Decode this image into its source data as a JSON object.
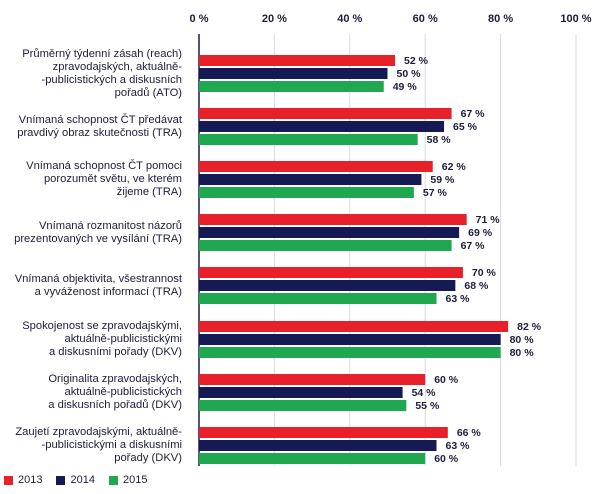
{
  "chart_data": {
    "type": "bar",
    "orientation": "horizontal",
    "xlim": [
      0,
      100
    ],
    "ticks": [
      "0 %",
      "20 %",
      "40 %",
      "60 %",
      "80 %",
      "100 %"
    ],
    "tick_values": [
      0,
      20,
      40,
      60,
      80,
      100
    ],
    "grid": true,
    "legend_position": "bottom-left",
    "categories": [
      "Průměrný týdenní zásah (reach) zpravodajských, aktuálně--publicistických a diskusních pořadů (ATO)",
      "Vnímaná schopnost ČT předávat pravdivý obraz skutečnosti (TRA)",
      "Vnímaná schopnost ČT pomoci porozumět světu, ve kterém žijeme (TRA)",
      "Vnímaná rozmanitost názorů prezentovaných ve vysílání (TRA)",
      "Vnímaná objektivita, všestrannost a vyváženost informací (TRA)",
      "Spokojenost se zpravodajskými, aktuálně-publicistickými a diskusními pořady (DKV)",
      "Originalita zpravodajských, aktuálně-publicistických a diskusních pořadů (DKV)",
      "Zaujetí zpravodajskými, aktuálně--publicistickými a diskusními pořady (DKV)"
    ],
    "category_lines": [
      [
        "Průměrný týdenní zásah (reach)",
        "zpravodajských, aktuálně-",
        "-publicistických a diskusních",
        "pořadů (ATO)"
      ],
      [
        "Vnímaná schopnost ČT předávat",
        "pravdivý obraz skutečnosti (TRA)"
      ],
      [
        "Vnímaná schopnost ČT pomoci",
        "porozumět světu, ve kterém",
        "žijeme (TRA)"
      ],
      [
        "Vnímaná rozmanitost názorů",
        "prezentovaných ve vysílání (TRA)"
      ],
      [
        "Vnímaná objektivita, všestrannost",
        "a vyváženost informací (TRA)"
      ],
      [
        "Spokojenost se zpravodajskými,",
        "aktuálně-publicistickými",
        "a diskusními pořady (DKV)"
      ],
      [
        "Originalita zpravodajských,",
        "aktuálně-publicistických",
        "a diskusních pořadů (DKV)"
      ],
      [
        "Zaujetí zpravodajskými, aktuálně-",
        "-publicistickými a diskusními",
        "pořady (DKV)"
      ]
    ],
    "series": [
      {
        "name": "2013",
        "color": "#e8202a",
        "values": [
          52,
          67,
          62,
          71,
          70,
          82,
          60,
          66
        ],
        "labels": [
          "52 %",
          "67 %",
          "62 %",
          "71 %",
          "70 %",
          "82 %",
          "60 %",
          "66 %"
        ]
      },
      {
        "name": "2014",
        "color": "#151a54",
        "values": [
          50,
          65,
          59,
          69,
          68,
          80,
          54,
          63
        ],
        "labels": [
          "50 %",
          "65 %",
          "59 %",
          "69 %",
          "68 %",
          "80 %",
          "54 %",
          "63 %"
        ]
      },
      {
        "name": "2015",
        "color": "#1fa84f",
        "values": [
          49,
          58,
          57,
          67,
          63,
          80,
          55,
          60
        ],
        "labels": [
          "49 %",
          "58 %",
          "57 %",
          "67 %",
          "63 %",
          "80 %",
          "55 %",
          "60 %"
        ]
      }
    ]
  }
}
